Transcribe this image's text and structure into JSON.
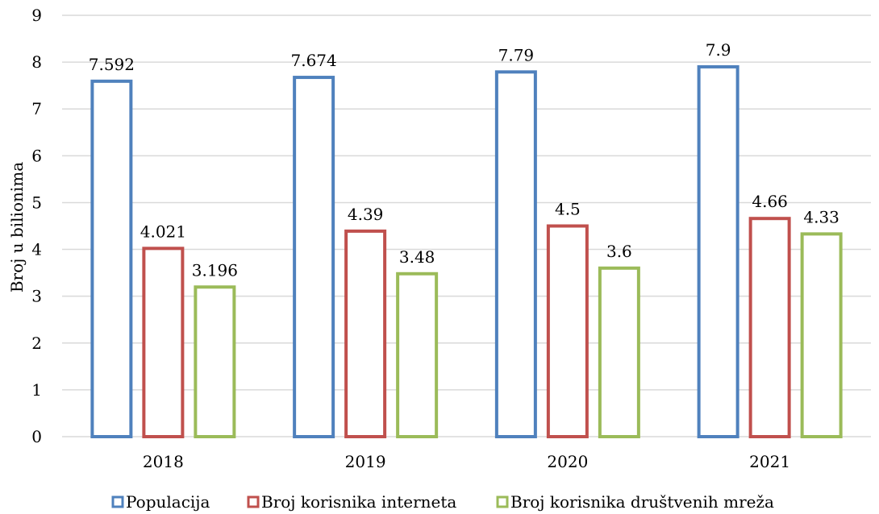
{
  "chart_data": {
    "type": "bar",
    "categories": [
      "2018",
      "2019",
      "2020",
      "2021"
    ],
    "series": [
      {
        "name": "Populacija",
        "values": [
          7.592,
          7.674,
          7.79,
          7.9
        ],
        "labels": [
          "7.592",
          "7.674",
          "7.79",
          "7.9"
        ],
        "color": "#4f81bd"
      },
      {
        "name": "Broj korisnika interneta",
        "values": [
          4.021,
          4.39,
          4.5,
          4.66
        ],
        "labels": [
          "4.021",
          "4.39",
          "4.5",
          "4.66"
        ],
        "color": "#c0504d"
      },
      {
        "name": "Broj korisnika društvenih mreža",
        "values": [
          3.196,
          3.48,
          3.6,
          4.33
        ],
        "labels": [
          "3.196",
          "3.48",
          "3.6",
          "4.33"
        ],
        "color": "#9bbb59"
      }
    ],
    "ylabel": "Broj u bilionima",
    "xlabel": "",
    "ylim": [
      0,
      9
    ],
    "yticks": [
      "0",
      "1",
      "2",
      "3",
      "4",
      "5",
      "6",
      "7",
      "8",
      "9"
    ],
    "grid": true,
    "legend_position": "bottom"
  }
}
